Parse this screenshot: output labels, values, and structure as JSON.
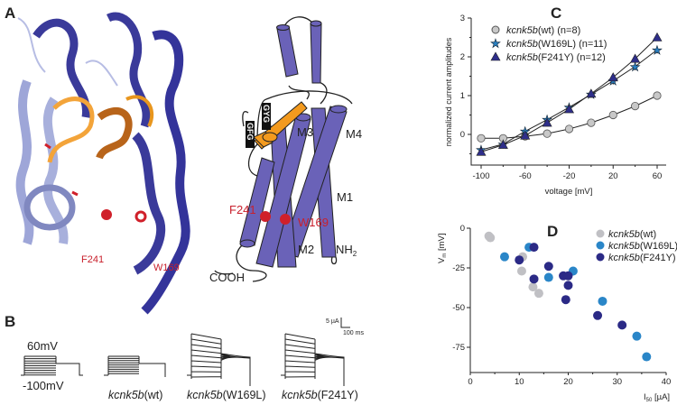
{
  "panels": {
    "a": "A",
    "b": "B",
    "c": "C",
    "d": "D"
  },
  "panel_a": {
    "structure_labels": {
      "f241": "F241",
      "w169": "W169"
    },
    "topology_labels": {
      "m1": "M1",
      "m2": "M2",
      "m3": "M3",
      "m4": "M4",
      "nh2": "NH",
      "nh2_sub": "2",
      "cooh": "COOH",
      "f241": "F241",
      "w169": "W169",
      "gfg": "GFG",
      "gyg": "GYG"
    },
    "colors": {
      "helix_dark": "#3a3a9a",
      "helix_light": "#9ea6d8",
      "selectivity": "#f39a1e",
      "residue": "#c8202c",
      "cylinder": "#6a62b8"
    }
  },
  "panel_b": {
    "protocol_high": "60mV",
    "protocol_low": "-100mV",
    "scale_current": "5 µA",
    "scale_time": "100 ms",
    "traces": [
      {
        "label_italic": "kcnk5b",
        "label_rest": "(wt)"
      },
      {
        "label_italic": "kcnk5b",
        "label_rest": "(W169L)"
      },
      {
        "label_italic": "kcnk5b",
        "label_rest": "(F241Y)"
      }
    ]
  },
  "chart_data": [
    {
      "type": "line",
      "panel": "C",
      "xlabel": "voltage [mV]",
      "ylabel": "normalized current amplitudes",
      "x": [
        -100,
        -80,
        -60,
        -40,
        -20,
        0,
        20,
        40,
        60
      ],
      "xticks": [
        "-100",
        "-60",
        "-20",
        "20",
        "60"
      ],
      "yticks": [
        "0",
        "1",
        "2",
        "3"
      ],
      "xlim": [
        -110,
        70
      ],
      "ylim": [
        -0.6,
        3
      ],
      "legend_position": "top-left",
      "series": [
        {
          "name_italic": "kcnk5b",
          "name_rest": "(wt) (n=8)",
          "marker": "circle",
          "color": "#c8c8c8",
          "values": [
            -0.1,
            -0.1,
            -0.05,
            0.02,
            0.14,
            0.3,
            0.5,
            0.73,
            1.0
          ]
        },
        {
          "name_italic": "kcnk5b",
          "name_rest": "(W169L) (n=11)",
          "marker": "star",
          "color": "#2a7fc0",
          "values": [
            -0.4,
            -0.25,
            0.08,
            0.38,
            0.7,
            1.03,
            1.38,
            1.75,
            2.18
          ]
        },
        {
          "name_italic": "kcnk5b",
          "name_rest": "(F241Y) (n=12)",
          "marker": "triangle",
          "color": "#2e2e8a",
          "values": [
            -0.45,
            -0.27,
            -0.03,
            0.3,
            0.65,
            1.05,
            1.47,
            1.95,
            2.5
          ]
        }
      ]
    },
    {
      "type": "scatter",
      "panel": "D",
      "xlabel": "I",
      "xlabel_sub": "50",
      "xlabel_unit": " [µA]",
      "ylabel": "V",
      "ylabel_sub": "m",
      "ylabel_unit": " [mV]",
      "xticks": [
        "0",
        "10",
        "20",
        "30",
        "40"
      ],
      "yticks": [
        "0",
        "-25",
        "-50",
        "-75"
      ],
      "xlim": [
        0,
        40
      ],
      "ylim": [
        -88,
        0
      ],
      "legend_position": "top-right",
      "series": [
        {
          "name_italic": "kcnk5b",
          "name_rest": "(wt)",
          "color": "#c0c0c4",
          "points": [
            [
              3.8,
              -5
            ],
            [
              4.1,
              -6
            ],
            [
              10.7,
              -18
            ],
            [
              10.5,
              -27
            ],
            [
              12.8,
              -37
            ],
            [
              14,
              -41
            ]
          ]
        },
        {
          "name_italic": "kcnk5b",
          "name_rest": "(W169L)",
          "color": "#2a86c8",
          "points": [
            [
              7,
              -18
            ],
            [
              12,
              -12
            ],
            [
              16,
              -31
            ],
            [
              21,
              -27
            ],
            [
              27,
              -46
            ],
            [
              34,
              -68
            ],
            [
              36,
              -81
            ]
          ]
        },
        {
          "name_italic": "kcnk5b",
          "name_rest": "(F241Y)",
          "color": "#2b2a86",
          "points": [
            [
              13,
              -12
            ],
            [
              10,
              -20
            ],
            [
              13,
              -32
            ],
            [
              16,
              -24
            ],
            [
              19,
              -30
            ],
            [
              20,
              -30
            ],
            [
              20,
              -36
            ],
            [
              19.5,
              -45
            ],
            [
              26,
              -55
            ],
            [
              31,
              -61
            ]
          ]
        }
      ]
    }
  ]
}
